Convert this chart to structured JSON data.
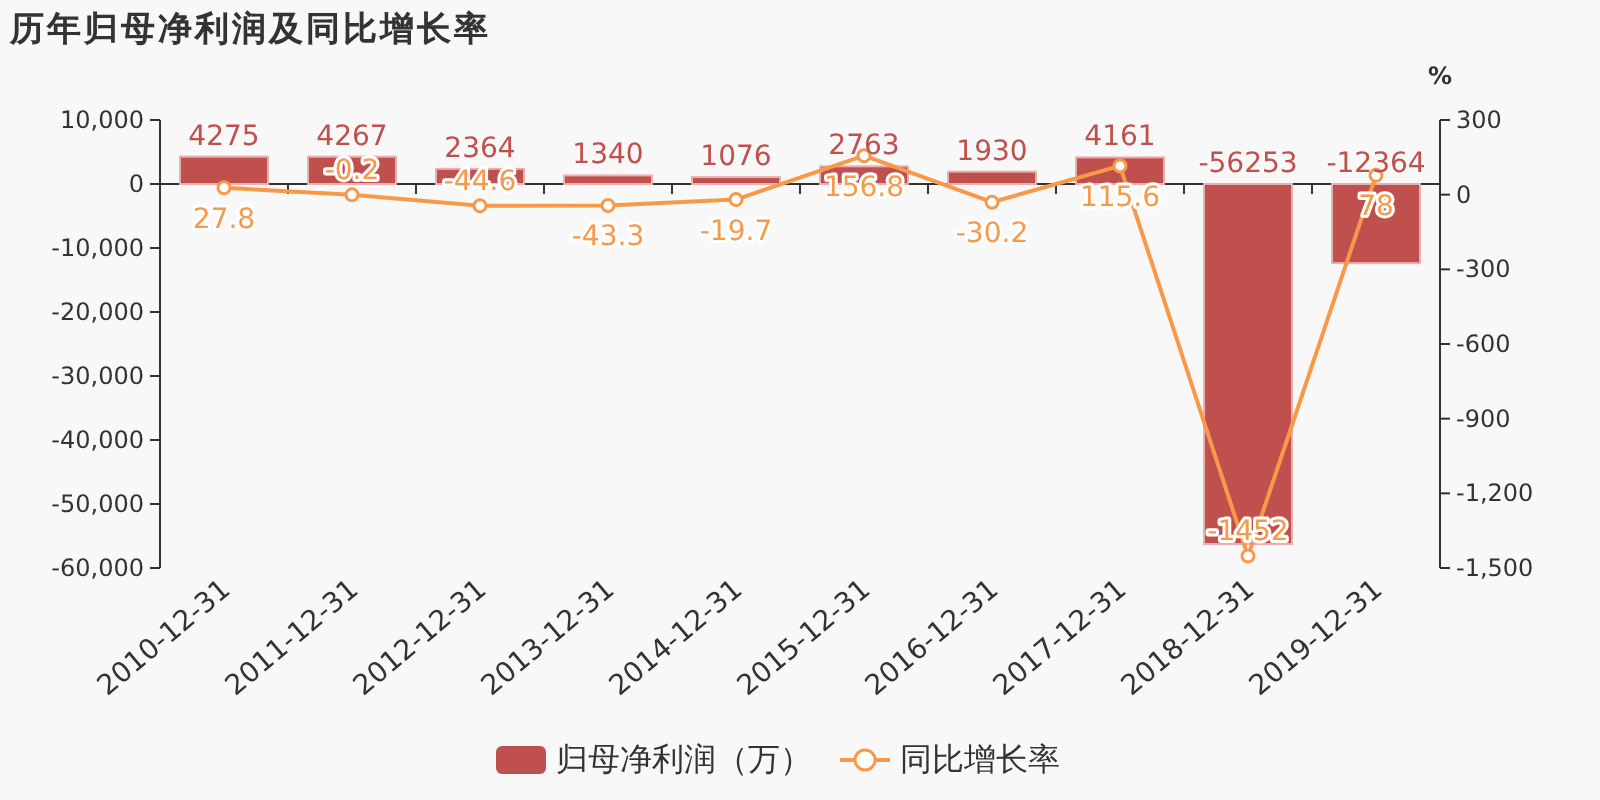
{
  "chart_data": {
    "type": "bar",
    "title": "历年归母净利润及同比增长率",
    "y2label": "%",
    "categories": [
      "2010-12-31",
      "2011-12-31",
      "2012-12-31",
      "2013-12-31",
      "2014-12-31",
      "2015-12-31",
      "2016-12-31",
      "2017-12-31",
      "2018-12-31",
      "2019-12-31"
    ],
    "series": [
      {
        "name": "归母净利润（万）",
        "color": "#c0504d",
        "values": [
          4275,
          4267,
          2364,
          1340,
          1076,
          2763,
          1930,
          4161,
          -56253,
          -12364
        ]
      },
      {
        "name": "同比增长率",
        "type": "line",
        "axis": "y2",
        "color": "#f7994a",
        "marker": "circle",
        "values": [
          27.8,
          -0.2,
          -44.6,
          -43.3,
          -19.7,
          156.8,
          -30.2,
          115.6,
          -1452,
          78
        ]
      }
    ],
    "ylim": [
      -60000,
      10000
    ],
    "yticks": [
      {
        "value": 10000,
        "label": "10,000"
      },
      0,
      {
        "value": -10000,
        "label": "-10,000"
      },
      {
        "value": -20000,
        "label": "-20,000"
      },
      {
        "value": -30000,
        "label": "-30,000"
      },
      {
        "value": -40000,
        "label": "-40,000"
      },
      {
        "value": -50000,
        "label": "-50,000"
      },
      {
        "value": -60000,
        "label": "-60,000"
      }
    ],
    "y2lim": [
      -1500,
      300
    ],
    "y2ticks": [
      300,
      0,
      -300,
      -600,
      -900,
      {
        "value": -1200,
        "label": "-1,200"
      },
      {
        "value": -1500,
        "label": "-1,500"
      }
    ],
    "data_labels": true,
    "legend": "bottom"
  }
}
